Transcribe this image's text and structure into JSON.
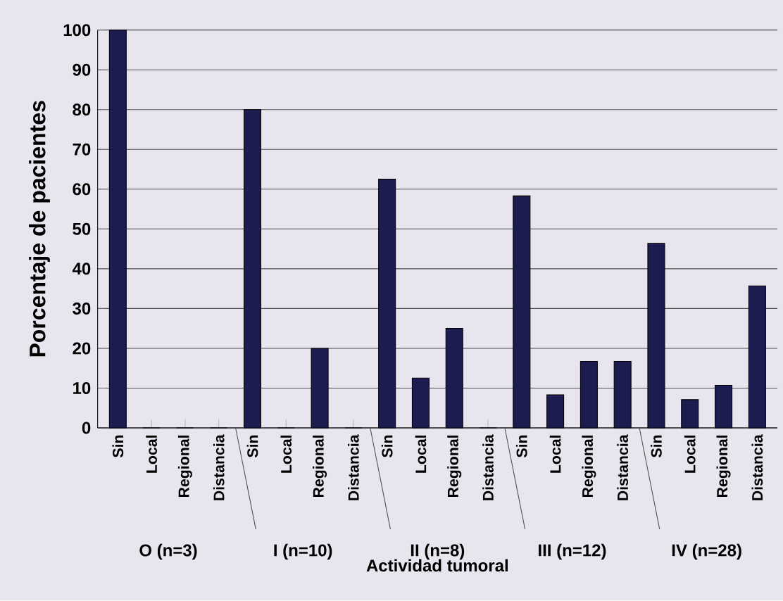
{
  "chart_data": {
    "type": "bar",
    "xlabel": "Actividad tumoral",
    "ylabel": "Porcentaje de pacientes",
    "categories": [
      "Sin",
      "Local",
      "Regional",
      "Distancia",
      "Sin",
      "Local",
      "Regional",
      "Distancia",
      "Sin",
      "Local",
      "Regional",
      "Distancia",
      "Sin",
      "Local",
      "Regional",
      "Distancia",
      "Sin",
      "Local",
      "Regional",
      "Distancia"
    ],
    "values": [
      100,
      0,
      0,
      0,
      80,
      0,
      20,
      0,
      62.5,
      12.5,
      25,
      0,
      58.3,
      8.3,
      16.7,
      16.7,
      46.4,
      7.1,
      10.7,
      35.7
    ],
    "color": "#1c1c50",
    "ylim": [
      0,
      100
    ],
    "yticks": [
      0,
      10,
      20,
      30,
      40,
      50,
      60,
      70,
      80,
      90,
      100
    ],
    "grid": "y",
    "annotations": [
      "O (n=3)",
      "I (n=10)",
      "II (n=8)",
      "III (n=12)",
      "IV (n=28)"
    ]
  }
}
